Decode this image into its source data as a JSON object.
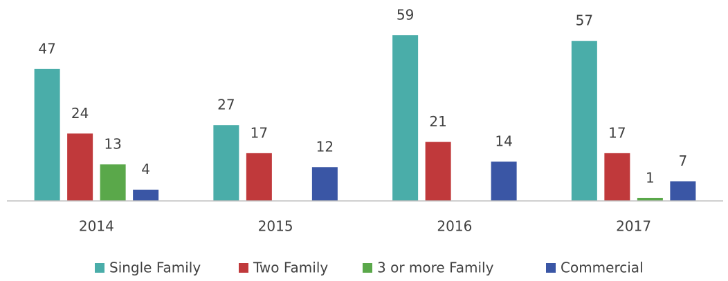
{
  "chart_data": {
    "type": "bar",
    "categories": [
      "2014",
      "2015",
      "2016",
      "2017"
    ],
    "series": [
      {
        "name": "Single Family",
        "color": "#4aada9",
        "values": [
          47,
          27,
          59,
          57
        ]
      },
      {
        "name": "Two Family",
        "color": "#c0393b",
        "values": [
          24,
          17,
          21,
          17
        ]
      },
      {
        "name": "3 or more Family",
        "color": "#5aa84a",
        "values": [
          13,
          null,
          null,
          1
        ]
      },
      {
        "name": "Commercial",
        "color": "#3a56a5",
        "values": [
          4,
          12,
          14,
          7
        ]
      }
    ],
    "ylim": [
      0,
      60
    ],
    "legend": "bottom"
  }
}
